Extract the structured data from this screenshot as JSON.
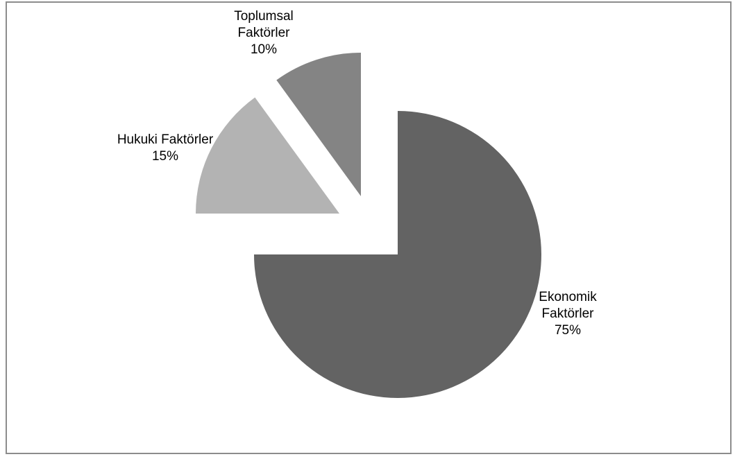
{
  "chart_data": {
    "type": "pie",
    "exploded": true,
    "legend": "none",
    "slices": [
      {
        "label": "Ekonomik Faktörler",
        "label_lines": [
          "Ekonomik",
          "Faktörler"
        ],
        "value": 75,
        "percent_label": "75%",
        "color": "#636363"
      },
      {
        "label": "Hukuki Faktörler",
        "label_lines": [
          "Hukuki Faktörler"
        ],
        "value": 15,
        "percent_label": "15%",
        "color": "#b3b3b3"
      },
      {
        "label": "Toplumsal Faktörler",
        "label_lines": [
          "Toplumsal",
          "Faktörler"
        ],
        "value": 10,
        "percent_label": "10%",
        "color": "#848484"
      }
    ]
  }
}
